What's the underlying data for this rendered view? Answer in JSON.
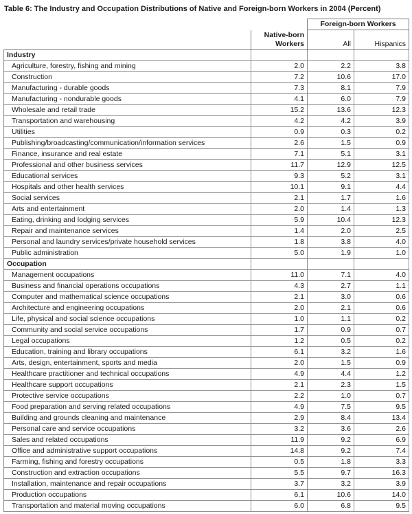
{
  "title": "Table 6: The Industry and Occupation Distributions of Native and Foreign-born Workers in 2004 (Percent)",
  "header": {
    "group": "Foreign-born Workers",
    "col_native_line1": "Native-born",
    "col_native_line2": "Workers",
    "col_all": "All",
    "col_hispanics": "Hispanics"
  },
  "sections": [
    {
      "label": "Industry",
      "rows": [
        {
          "label": "Agriculture, forestry, fishing and mining",
          "native": "2.0",
          "all": "2.2",
          "hispanics": "3.8"
        },
        {
          "label": "Construction",
          "native": "7.2",
          "all": "10.6",
          "hispanics": "17.0"
        },
        {
          "label": "Manufacturing - durable goods",
          "native": "7.3",
          "all": "8.1",
          "hispanics": "7.9"
        },
        {
          "label": "Manufacturing - nondurable goods",
          "native": "4.1",
          "all": "6.0",
          "hispanics": "7.9"
        },
        {
          "label": "Wholesale and retail trade",
          "native": "15.2",
          "all": "13.6",
          "hispanics": "12.3"
        },
        {
          "label": "Transportation and warehousing",
          "native": "4.2",
          "all": "4.2",
          "hispanics": "3.9"
        },
        {
          "label": "Utilities",
          "native": "0.9",
          "all": "0.3",
          "hispanics": "0.2"
        },
        {
          "label": "Publishing/broadcasting/communication/information services",
          "native": "2.6",
          "all": "1.5",
          "hispanics": "0.9"
        },
        {
          "label": "Finance, insurance and real estate",
          "native": "7.1",
          "all": "5.1",
          "hispanics": "3.1"
        },
        {
          "label": "Professional and other business services",
          "native": "11.7",
          "all": "12.9",
          "hispanics": "12.5"
        },
        {
          "label": "Educational services",
          "native": "9.3",
          "all": "5.2",
          "hispanics": "3.1"
        },
        {
          "label": "Hospitals and other health services",
          "native": "10.1",
          "all": "9.1",
          "hispanics": "4.4"
        },
        {
          "label": "Social services",
          "native": "2.1",
          "all": "1.7",
          "hispanics": "1.6"
        },
        {
          "label": "Arts and entertainment",
          "native": "2.0",
          "all": "1.4",
          "hispanics": "1.3"
        },
        {
          "label": "Eating, drinking and lodging services",
          "native": "5.9",
          "all": "10.4",
          "hispanics": "12.3"
        },
        {
          "label": "Repair and maintenance services",
          "native": "1.4",
          "all": "2.0",
          "hispanics": "2.5"
        },
        {
          "label": "Personal and laundry services/private household services",
          "native": "1.8",
          "all": "3.8",
          "hispanics": "4.0"
        },
        {
          "label": "Public administration",
          "native": "5.0",
          "all": "1.9",
          "hispanics": "1.0"
        }
      ]
    },
    {
      "label": "Occupation",
      "rows": [
        {
          "label": "Management occupations",
          "native": "11.0",
          "all": "7.1",
          "hispanics": "4.0"
        },
        {
          "label": "Business and financial operations occupations",
          "native": "4.3",
          "all": "2.7",
          "hispanics": "1.1"
        },
        {
          "label": "Computer and mathematical science occupations",
          "native": "2.1",
          "all": "3.0",
          "hispanics": "0.6"
        },
        {
          "label": "Architecture and engineering occupations",
          "native": "2.0",
          "all": "2.1",
          "hispanics": "0.6"
        },
        {
          "label": "Life, physical and social science occupations",
          "native": "1.0",
          "all": "1.1",
          "hispanics": "0.2"
        },
        {
          "label": "Community and social service occupations",
          "native": "1.7",
          "all": "0.9",
          "hispanics": "0.7"
        },
        {
          "label": "Legal occupations",
          "native": "1.2",
          "all": "0.5",
          "hispanics": "0.2"
        },
        {
          "label": "Education, training and library occupations",
          "native": "6.1",
          "all": "3.2",
          "hispanics": "1.6"
        },
        {
          "label": "Arts, design, entertainment, sports and media",
          "native": "2.0",
          "all": "1.5",
          "hispanics": "0.9"
        },
        {
          "label": "Healthcare practitioner and technical occupations",
          "native": "4.9",
          "all": "4.4",
          "hispanics": "1.2"
        },
        {
          "label": "Healthcare support occupations",
          "native": "2.1",
          "all": "2.3",
          "hispanics": "1.5"
        },
        {
          "label": "Protective service occupations",
          "native": "2.2",
          "all": "1.0",
          "hispanics": "0.7"
        },
        {
          "label": "Food preparation and serving related occupations",
          "native": "4.9",
          "all": "7.5",
          "hispanics": "9.5"
        },
        {
          "label": "Building and grounds cleaning and maintenance",
          "native": "2.9",
          "all": "8.4",
          "hispanics": "13.4"
        },
        {
          "label": "Personal care and service occupations",
          "native": "3.2",
          "all": "3.6",
          "hispanics": "2.6"
        },
        {
          "label": "Sales and related occupations",
          "native": "11.9",
          "all": "9.2",
          "hispanics": "6.9"
        },
        {
          "label": "Office and administrative support occupations",
          "native": "14.8",
          "all": "9.2",
          "hispanics": "7.4"
        },
        {
          "label": "Farming, fishing and forestry occupations",
          "native": "0.5",
          "all": "1.8",
          "hispanics": "3.3"
        },
        {
          "label": "Construction and extraction occupations",
          "native": "5.5",
          "all": "9.7",
          "hispanics": "16.3"
        },
        {
          "label": "Installation, maintenance and repair occupations",
          "native": "3.7",
          "all": "3.2",
          "hispanics": "3.9"
        },
        {
          "label": "Production occupations",
          "native": "6.1",
          "all": "10.6",
          "hispanics": "14.0"
        },
        {
          "label": "Transportation and material moving occupations",
          "native": "6.0",
          "all": "6.8",
          "hispanics": "9.5"
        }
      ]
    }
  ]
}
